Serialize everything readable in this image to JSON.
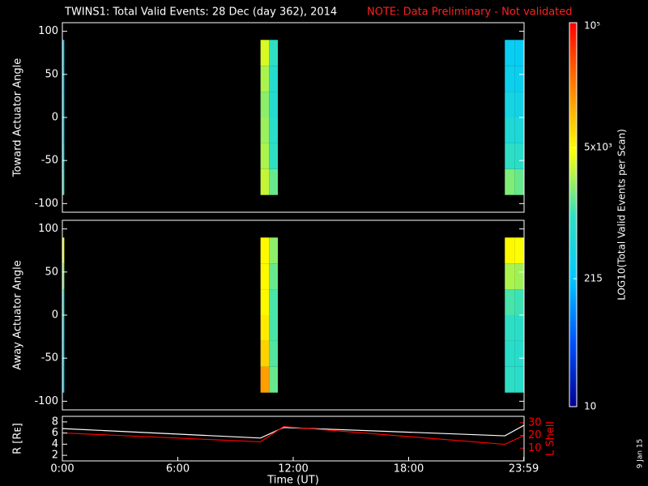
{
  "header": {
    "title": "TWINS1: Total Valid Events: 28 Dec (day 362), 2014",
    "note": "NOTE: Data Preliminary - Not validated",
    "date": "9 Jan 15"
  },
  "colorbar": {
    "title": "LOG10(Total Valid Events per Scan)",
    "log": true,
    "zlim": [
      10,
      100000
    ],
    "zticks": [
      10,
      215,
      {
        "value": 5000,
        "label": "5x10³"
      },
      {
        "value": 100000,
        "label": "10⁵"
      }
    ],
    "colormap": [
      "#000090",
      "#0050ff",
      "#00c8ff",
      "#30e0c0",
      "#ffff00",
      "#ff8000",
      "#ff0000"
    ]
  },
  "chart_data": [
    {
      "type": "heatmap",
      "ylabel": "Toward Actuator Angle",
      "xlim": [
        0,
        24
      ],
      "ylim": [
        -110,
        110
      ],
      "yticks": [
        -100,
        -50,
        0,
        50,
        100
      ],
      "x_edges": [
        0,
        0.1,
        10.3,
        10.75,
        11.2,
        23.0,
        23.5,
        24.0
      ],
      "y_edges": [
        -90,
        -60,
        -30,
        0,
        30,
        60,
        90
      ],
      "z": [
        [
          900,
          null,
          3000,
          1500,
          null,
          1800,
          1500
        ],
        [
          500,
          null,
          2500,
          900,
          null,
          900,
          800
        ],
        [
          350,
          null,
          2200,
          800,
          null,
          600,
          550
        ],
        [
          300,
          null,
          2000,
          700,
          null,
          450,
          400
        ],
        [
          280,
          null,
          2500,
          700,
          null,
          350,
          320
        ],
        [
          300,
          null,
          3500,
          900,
          null,
          300,
          280
        ]
      ]
    },
    {
      "type": "heatmap",
      "ylabel": "Away Actuator Angle",
      "xlim": [
        0,
        24
      ],
      "ylim": [
        -110,
        110
      ],
      "yticks": [
        -100,
        -50,
        0,
        50,
        100
      ],
      "x_edges": [
        0,
        0.1,
        10.3,
        10.75,
        11.2,
        23.0,
        23.5,
        24.0
      ],
      "y_edges": [
        -90,
        -60,
        -30,
        0,
        30,
        60,
        90
      ],
      "z": [
        [
          300,
          null,
          15000,
          1500,
          null,
          900,
          800
        ],
        [
          350,
          null,
          8000,
          1300,
          null,
          800,
          750
        ],
        [
          500,
          null,
          6000,
          1200,
          null,
          900,
          850
        ],
        [
          800,
          null,
          5000,
          1200,
          null,
          1200,
          1100
        ],
        [
          2000,
          null,
          5000,
          1500,
          null,
          2500,
          2300
        ],
        [
          4000,
          null,
          5000,
          2000,
          null,
          5000,
          4500
        ]
      ]
    },
    {
      "type": "line",
      "ylabel": "R [Rᴇ]",
      "y2label": "L Shell",
      "xlabel": "Time (UT)",
      "x": [
        0,
        10.3,
        11.5,
        23.0,
        24.0
      ],
      "xlim": [
        0,
        24
      ],
      "xticks": [
        {
          "value": 0,
          "label": "0:00"
        },
        {
          "value": 6,
          "label": "6:00"
        },
        {
          "value": 12,
          "label": "12:00"
        },
        {
          "value": 18,
          "label": "18:00"
        },
        {
          "value": 23.983,
          "label": "23:59"
        }
      ],
      "ylim": [
        1,
        9
      ],
      "yticks": [
        2,
        4,
        6,
        8
      ],
      "y2lim": [
        0,
        35
      ],
      "y2ticks": [
        10,
        20,
        30
      ],
      "y2color": "#ff0000",
      "series": [
        {
          "name": "R",
          "color": "#ffffff",
          "values": [
            6.8,
            5.1,
            7.0,
            5.5,
            7.4
          ]
        },
        {
          "name": "L Shell",
          "color": "#ff0000",
          "axis": "y2",
          "values": [
            22,
            15,
            27,
            13,
            20
          ]
        }
      ]
    }
  ]
}
